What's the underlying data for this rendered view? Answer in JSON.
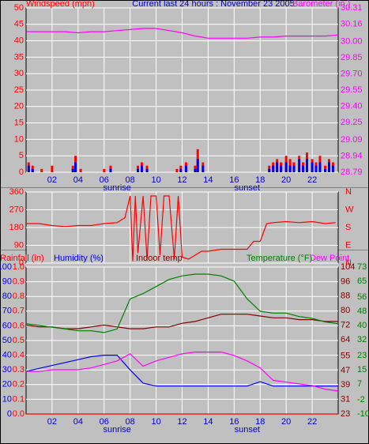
{
  "chart_data": [
    {
      "type": "bar-line",
      "title": "Current last 24 hours : November 23 2005",
      "grid": true,
      "x_tick_labels": true,
      "xlim": [
        0,
        24
      ],
      "xticks": [
        {
          "value": 2,
          "label": "02"
        },
        {
          "value": 4,
          "label": "04"
        },
        {
          "value": 6,
          "label": "06"
        },
        {
          "value": 8,
          "label": "08"
        },
        {
          "value": 10,
          "label": "10"
        },
        {
          "value": 12,
          "label": "12"
        },
        {
          "value": 14,
          "label": "14"
        },
        {
          "value": 16,
          "label": "16"
        },
        {
          "value": 18,
          "label": "18"
        },
        {
          "value": 20,
          "label": "20"
        },
        {
          "value": 22,
          "label": "22"
        }
      ],
      "annotations": [
        {
          "text": "sunrise",
          "x": 7
        },
        {
          "text": "sunset",
          "x": 17
        }
      ],
      "axes": [
        {
          "title": "Windspeed (mph)",
          "color": "#ff0000",
          "lim": [
            0,
            50
          ],
          "ticks": [
            0,
            5,
            10,
            15,
            20,
            25,
            30,
            35,
            40,
            45,
            50
          ]
        },
        {
          "title": "Barometer (in.)",
          "color": "#ff00ff",
          "lim": [
            28.79,
            30.31
          ],
          "ticks": [
            28.79,
            28.94,
            29.09,
            {
              "value": 29.25,
              "label": "29.25"
            },
            {
              "value": 29.4,
              "label": "29.40"
            },
            29.55,
            {
              "value": 29.7,
              "label": "29.70"
            },
            29.85,
            {
              "value": 30,
              "label": "30.00"
            },
            30.16,
            30.31
          ]
        }
      ],
      "series": [
        {
          "type": "bar",
          "color": "#ff0000",
          "axis": 0,
          "x": [
            0.2,
            0.5,
            1.2,
            2,
            3.6,
            3.8,
            4.2,
            6,
            6.5,
            8.6,
            8.9,
            9.3,
            11.6,
            11.9,
            12.3,
            13,
            13.2,
            13.6,
            18.7,
            19,
            19.3,
            19.6,
            20,
            20.3,
            20.6,
            21,
            21.3,
            21.6,
            22,
            22.3,
            22.6,
            23,
            23.3,
            23.6
          ],
          "values": [
            3,
            2,
            1,
            2,
            2,
            5,
            1,
            1,
            2,
            2,
            3,
            2,
            1,
            2,
            3,
            2,
            7,
            3,
            2,
            3,
            4,
            3,
            5,
            4,
            3,
            5,
            3,
            6,
            4,
            3,
            5,
            2,
            4,
            3
          ]
        },
        {
          "type": "bar",
          "color": "#0000ff",
          "axis": 0,
          "x": [
            0.2,
            0.5,
            1.2,
            2,
            3.6,
            3.8,
            4.2,
            6,
            6.5,
            8.6,
            8.9,
            9.3,
            11.6,
            11.9,
            12.3,
            13,
            13.2,
            13.6,
            18.7,
            19,
            19.3,
            19.6,
            20,
            20.3,
            20.6,
            21,
            21.3,
            21.6,
            22,
            22.3,
            22.6,
            23,
            23.3,
            23.6
          ],
          "values": [
            2,
            1,
            0,
            0,
            1,
            3,
            0,
            0,
            1,
            1,
            2,
            1,
            0,
            1,
            2,
            1,
            4,
            2,
            1,
            2,
            3,
            2,
            3,
            2,
            2,
            4,
            2,
            4,
            3,
            2,
            3,
            1,
            3,
            2
          ]
        },
        {
          "type": "line",
          "color": "#ff00ff",
          "axis": 1,
          "x": [
            0,
            1,
            2,
            3,
            4,
            5,
            6,
            7,
            8,
            9,
            10,
            11,
            12,
            13,
            14,
            15,
            16,
            17,
            18,
            19,
            20,
            21,
            22,
            23,
            24
          ],
          "values": [
            30.09,
            30.09,
            30.09,
            30.09,
            30.08,
            30.09,
            30.09,
            30.1,
            30.11,
            30.12,
            30.12,
            30.1,
            30.08,
            30.05,
            30.03,
            30.03,
            30.03,
            30.03,
            30.04,
            30.04,
            30.05,
            30.05,
            30.05,
            30.05,
            30.06
          ]
        }
      ]
    },
    {
      "type": "line",
      "grid": true,
      "x_tick_labels": false,
      "xlim": [
        0,
        24
      ],
      "xticks": [
        2,
        4,
        6,
        8,
        10,
        12,
        14,
        16,
        18,
        20,
        22
      ],
      "axes": [
        {
          "color": "#ff0000",
          "lim": [
            0,
            360
          ],
          "ticks": [
            0,
            90,
            180,
            270,
            360
          ]
        },
        {
          "color": "#ff0000",
          "lim": [
            0,
            360
          ],
          "ticks": [
            {
              "value": 0,
              "label": "N"
            },
            {
              "value": 90,
              "label": "E"
            },
            {
              "value": 180,
              "label": "S"
            },
            {
              "value": 270,
              "label": "W"
            },
            {
              "value": 360,
              "label": "N"
            }
          ]
        }
      ],
      "series": [
        {
          "type": "line",
          "color": "#ff0000",
          "axis": 0,
          "x": [
            0,
            1,
            2,
            3,
            4,
            5,
            6,
            7,
            7.6,
            8,
            8.2,
            8.4,
            8.6,
            9,
            9.3,
            9.6,
            10,
            10.3,
            10.6,
            11,
            11.4,
            11.7,
            12,
            12.5,
            13,
            13.5,
            14,
            15,
            17,
            17.5,
            18,
            18.5,
            19,
            20,
            21,
            22,
            23,
            23.8
          ],
          "values": [
            200,
            200,
            190,
            185,
            190,
            190,
            200,
            205,
            230,
            340,
            10,
            340,
            50,
            340,
            20,
            340,
            340,
            40,
            340,
            340,
            20,
            340,
            30,
            20,
            40,
            60,
            60,
            70,
            70,
            110,
            110,
            200,
            205,
            210,
            205,
            210,
            200,
            205
          ]
        }
      ]
    },
    {
      "type": "line",
      "grid": true,
      "x_tick_labels": true,
      "xlim": [
        0,
        24
      ],
      "xticks": [
        {
          "value": 2,
          "label": "02"
        },
        {
          "value": 4,
          "label": "04"
        },
        {
          "value": 6,
          "label": "06"
        },
        {
          "value": 8,
          "label": "08"
        },
        {
          "value": 10,
          "label": "10"
        },
        {
          "value": 12,
          "label": "12"
        },
        {
          "value": 14,
          "label": "14"
        },
        {
          "value": 16,
          "label": "16"
        },
        {
          "value": 18,
          "label": "18"
        },
        {
          "value": 20,
          "label": "20"
        },
        {
          "value": 22,
          "label": "22"
        }
      ],
      "annotations": [
        {
          "text": "sunrise",
          "x": 7
        },
        {
          "text": "sunset",
          "x": 17
        }
      ],
      "x": [
        0,
        1,
        2,
        3,
        4,
        5,
        6,
        7,
        8,
        9,
        10,
        11,
        12,
        13,
        14,
        15,
        16,
        17,
        18,
        19,
        20,
        21,
        22,
        23,
        24
      ],
      "axes": [
        {
          "title": "Humidity (%)",
          "color": "#0000ff",
          "lim": [
            0,
            100
          ],
          "ticks": [
            0,
            10,
            20,
            30,
            40,
            50,
            60,
            70,
            80,
            90,
            100
          ]
        },
        {
          "title": "Rainfall (in)",
          "color": "#ff0000",
          "lim": [
            0,
            1
          ],
          "ticks": [
            {
              "value": 0,
              "label": "0.0"
            },
            0.1,
            0.2,
            0.3,
            0.4,
            0.5,
            0.6,
            0.7,
            0.8,
            0.9,
            {
              "value": 1,
              "label": "1.0"
            }
          ]
        },
        {
          "title": "Indoor temp",
          "color": "#800000",
          "lim": [
            23,
            104
          ],
          "ticks": [
            23,
            31,
            39,
            47,
            55,
            64,
            72,
            80,
            88,
            96,
            104
          ]
        },
        {
          "title": "Temperature (°F)",
          "color": "#008000",
          "lim": [
            -10,
            73
          ],
          "ticks": [
            -10,
            -2,
            7,
            15,
            23,
            32,
            40,
            48,
            56,
            65,
            73
          ]
        }
      ],
      "series": [
        {
          "type": "line",
          "color": "#ff0000",
          "axis": 1,
          "values": [
            0,
            0,
            0,
            0,
            0,
            0,
            0,
            0,
            0,
            0,
            0,
            0,
            0,
            0,
            0,
            0,
            0,
            0,
            0,
            0,
            0,
            0,
            0,
            0,
            0
          ]
        },
        {
          "type": "line",
          "color": "#0000ff",
          "axis": 0,
          "values": [
            29,
            31,
            33,
            35,
            37,
            39,
            40,
            40,
            30,
            21,
            19,
            19,
            19,
            19,
            19,
            19,
            19,
            19,
            22,
            19,
            19,
            19,
            19,
            19,
            19
          ]
        },
        {
          "type": "line",
          "color": "#800000",
          "axis": 2,
          "values": [
            72,
            71,
            71,
            70,
            70,
            71,
            72,
            71,
            70,
            70,
            71,
            71,
            73,
            74,
            76,
            78,
            78,
            78,
            77,
            76,
            76,
            75,
            75,
            74,
            74
          ]
        },
        {
          "type": "line",
          "color": "#008000",
          "axis": 3,
          "values": [
            41,
            40,
            39,
            38,
            37,
            37,
            36,
            38,
            55,
            58,
            62,
            66,
            68,
            69,
            69,
            68,
            65,
            55,
            48,
            47,
            47,
            45,
            44,
            42,
            41
          ]
        },
        {
          "type": "line",
          "name": "Dew Point",
          "color": "#ff00ff",
          "axis": 3,
          "values": [
            14,
            14,
            15,
            15,
            15,
            16,
            18,
            20,
            24,
            17,
            20,
            22,
            24,
            25,
            25,
            25,
            23,
            20,
            16,
            9,
            8,
            7,
            6,
            4,
            3
          ]
        }
      ]
    }
  ]
}
